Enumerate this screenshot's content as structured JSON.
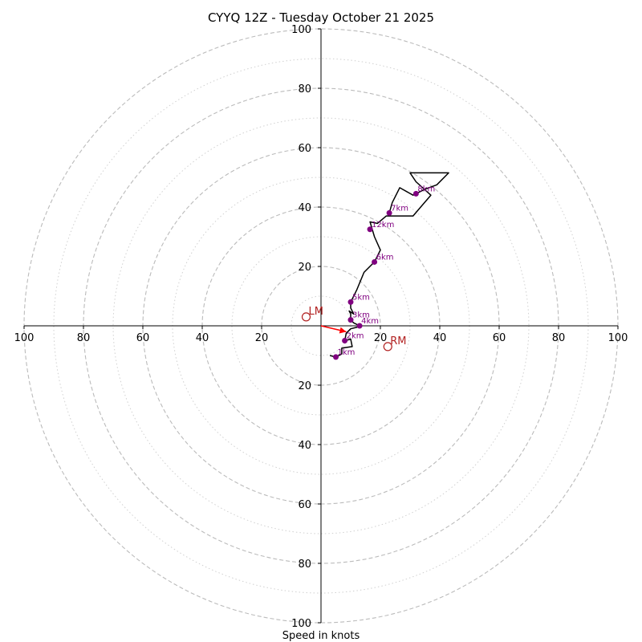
{
  "chart_data": {
    "type": "hodograph",
    "title": "CYYQ 12Z - Tuesday October 21 2025",
    "xlabel": "Speed in knots",
    "units": "knots",
    "axis_range": [
      -100,
      100
    ],
    "ring_major": [
      20,
      40,
      60,
      80,
      100
    ],
    "ring_minor": [
      10,
      30,
      50,
      70,
      90
    ],
    "x_ticks": [
      {
        "value": -100,
        "label": "100"
      },
      {
        "value": -80,
        "label": "80"
      },
      {
        "value": -60,
        "label": "60"
      },
      {
        "value": -40,
        "label": "40"
      },
      {
        "value": -20,
        "label": "20"
      },
      {
        "value": 20,
        "label": "20"
      },
      {
        "value": 40,
        "label": "40"
      },
      {
        "value": 60,
        "label": "60"
      },
      {
        "value": 80,
        "label": "80"
      },
      {
        "value": 100,
        "label": "100"
      }
    ],
    "y_ticks": [
      {
        "value": 100,
        "label": "100"
      },
      {
        "value": 80,
        "label": "80"
      },
      {
        "value": 60,
        "label": "60"
      },
      {
        "value": 40,
        "label": "40"
      },
      {
        "value": 20,
        "label": "20"
      },
      {
        "value": -20,
        "label": "20"
      },
      {
        "value": -40,
        "label": "40"
      },
      {
        "value": -60,
        "label": "60"
      },
      {
        "value": -80,
        "label": "80"
      },
      {
        "value": -100,
        "label": "100"
      }
    ],
    "wind_profile": [
      {
        "u": 3,
        "v": -10
      },
      {
        "u": 5,
        "v": -10.5
      },
      {
        "u": 7,
        "v": -9.5
      },
      {
        "u": 7,
        "v": -7.5
      },
      {
        "u": 10.5,
        "v": -7
      },
      {
        "u": 10,
        "v": -4.5
      },
      {
        "u": 8,
        "v": -5
      },
      {
        "u": 8.5,
        "v": -2.5
      },
      {
        "u": 10,
        "v": -1
      },
      {
        "u": 12,
        "v": -0.5
      },
      {
        "u": 13,
        "v": 0
      },
      {
        "u": 11,
        "v": 1
      },
      {
        "u": 10,
        "v": 2
      },
      {
        "u": 10,
        "v": 4
      },
      {
        "u": 9.5,
        "v": 5
      },
      {
        "u": 11,
        "v": 4
      },
      {
        "u": 10,
        "v": 6
      },
      {
        "u": 10,
        "v": 8
      },
      {
        "u": 12,
        "v": 12
      },
      {
        "u": 14.5,
        "v": 18
      },
      {
        "u": 18,
        "v": 21.5
      },
      {
        "u": 20,
        "v": 25.5
      },
      {
        "u": 18,
        "v": 30
      },
      {
        "u": 16.5,
        "v": 35
      },
      {
        "u": 19,
        "v": 34.5
      },
      {
        "u": 22,
        "v": 37
      },
      {
        "u": 31,
        "v": 37
      },
      {
        "u": 37,
        "v": 44
      },
      {
        "u": 32,
        "v": 48.5
      },
      {
        "u": 30,
        "v": 51.5
      },
      {
        "u": 43,
        "v": 51.5
      },
      {
        "u": 39,
        "v": 47.5
      },
      {
        "u": 35,
        "v": 46
      },
      {
        "u": 31,
        "v": 44
      },
      {
        "u": 26.5,
        "v": 46.5
      },
      {
        "u": 24,
        "v": 41.5
      },
      {
        "u": 23,
        "v": 38
      }
    ],
    "height_markers": [
      {
        "label": "1km",
        "u": 5,
        "v": -10.5
      },
      {
        "label": "2km",
        "u": 8,
        "v": -5
      },
      {
        "label": "3km",
        "u": 10,
        "v": 2
      },
      {
        "label": "4km",
        "u": 13,
        "v": 0
      },
      {
        "label": "5km",
        "u": 10,
        "v": 8
      },
      {
        "label": "6km",
        "u": 18,
        "v": 21.5
      },
      {
        "label": "7km",
        "u": 23,
        "v": 38
      },
      {
        "label": "8km",
        "u": 32,
        "v": 44.5
      },
      {
        "label": "12km",
        "u": 16.5,
        "v": 32.5
      }
    ],
    "storm_motion": [
      {
        "label": "LM",
        "u": -5,
        "v": 3
      },
      {
        "label": "RM",
        "u": 22.5,
        "v": -7
      }
    ],
    "mean_motion_vector": {
      "u": 8.5,
      "v": -2
    },
    "colors": {
      "profile": "#000000",
      "markers": "#800080",
      "storm_motion": "#b22222",
      "vector": "#ff0000",
      "grid": "#bbbbbb"
    }
  }
}
